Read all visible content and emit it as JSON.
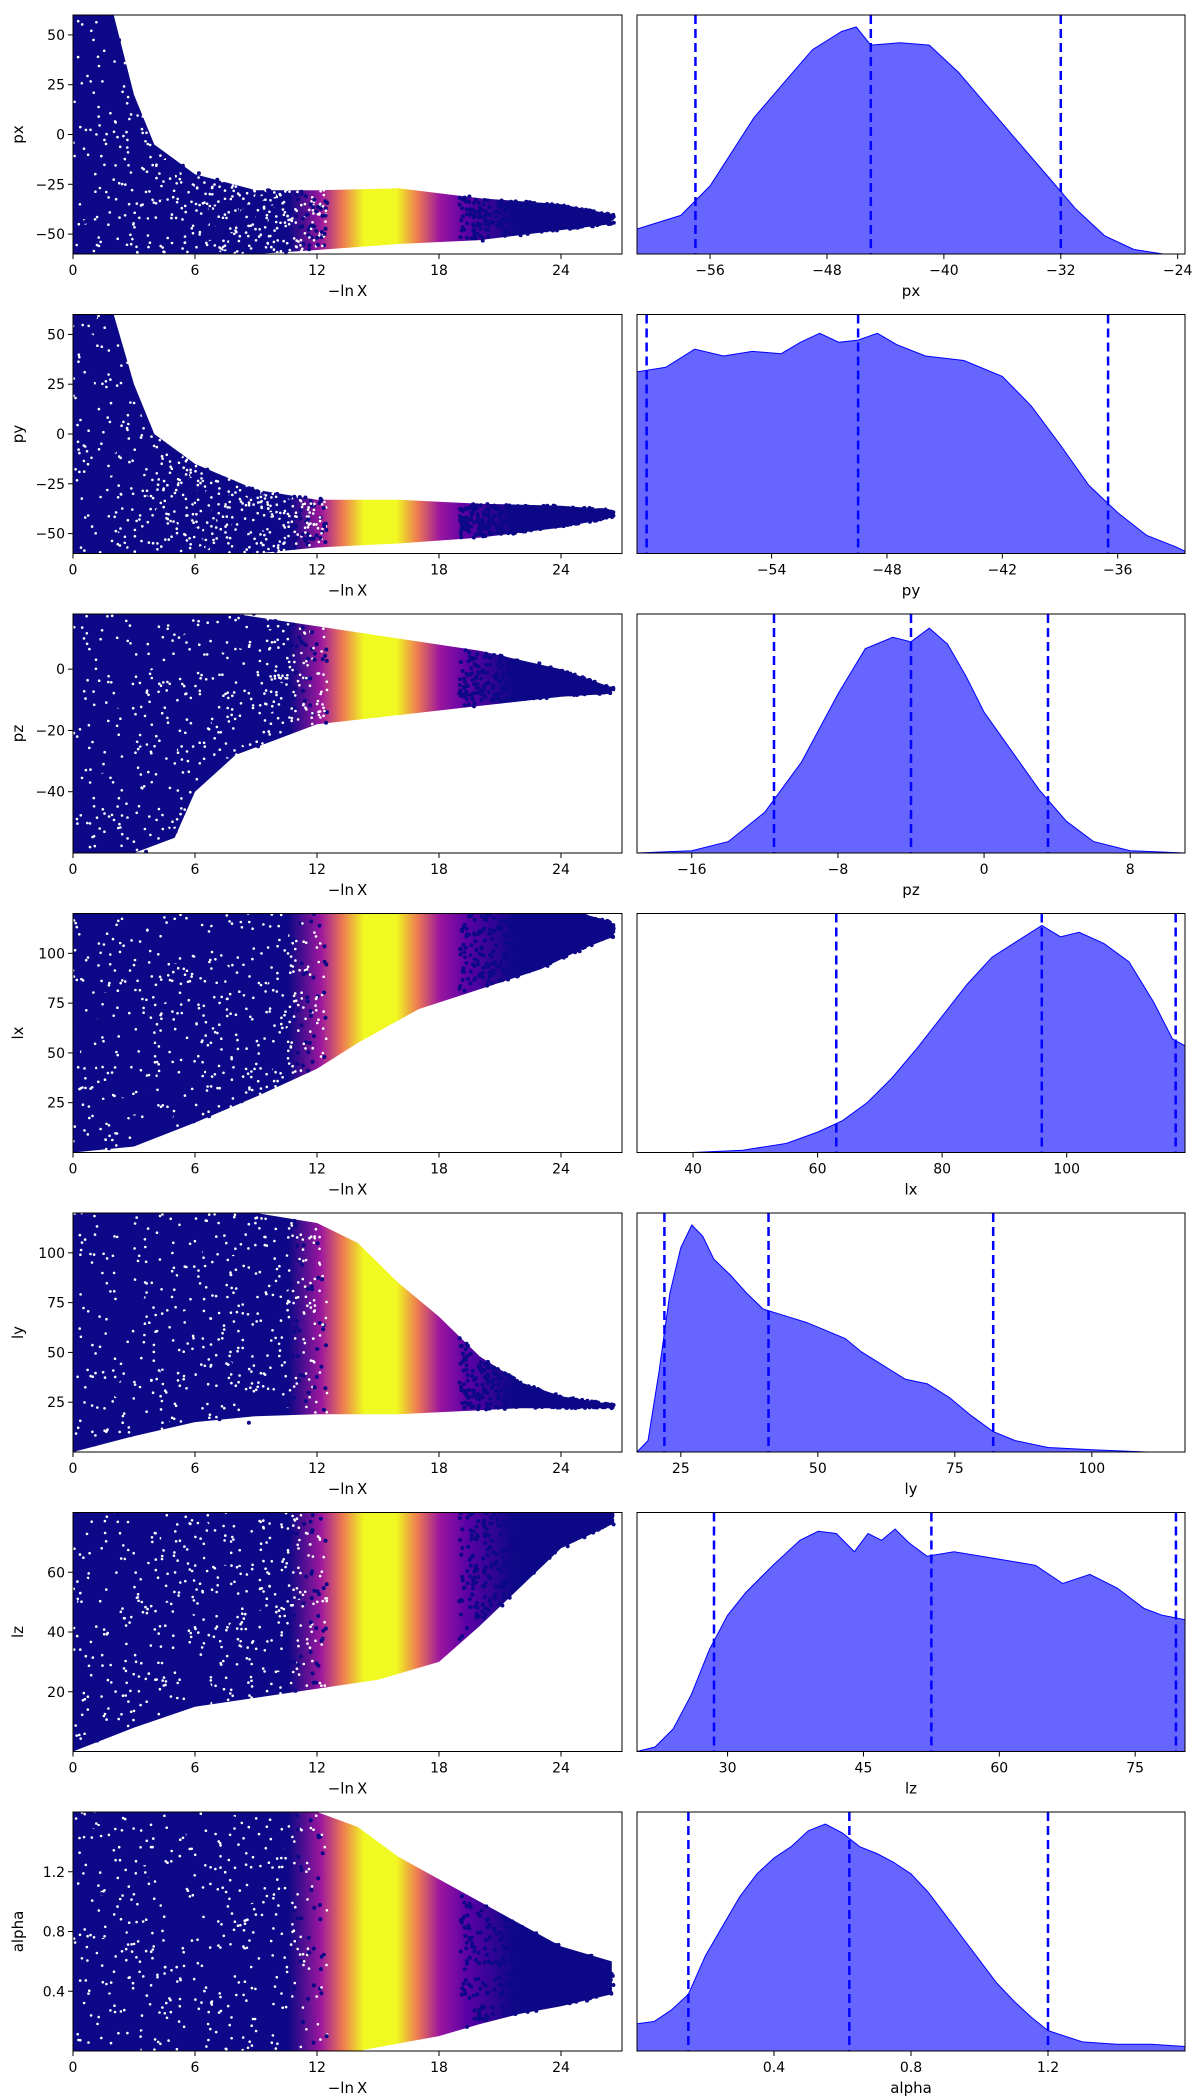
{
  "figure": {
    "x_axis_label": "−ln X"
  },
  "colors": {
    "scatter_colormap": [
      "#0d0887",
      "#5c01a6",
      "#9c179e",
      "#cc4778",
      "#ed7953",
      "#fdb42f",
      "#f0f921"
    ],
    "kde_fill": "#0000ff",
    "kde_fill_alpha": 0.6,
    "quantile_line": "#0000ff"
  },
  "chart_data": [
    {
      "panel": "trace",
      "type": "scatter",
      "param": "px",
      "xlabel": "−ln X",
      "ylabel": "px",
      "xlim": [
        0,
        27
      ],
      "ylim": [
        -60,
        60
      ],
      "xticks": [
        0,
        6,
        12,
        18,
        24
      ],
      "yticks": [
        -50,
        -25,
        0,
        25,
        50
      ],
      "color_scale": "plasma, peak near −ln X ≈ 15.5",
      "envelope": [
        [
          0,
          -60,
          60
        ],
        [
          2,
          -60,
          60
        ],
        [
          3,
          -60,
          20
        ],
        [
          4,
          -60,
          -5
        ],
        [
          6,
          -60,
          -20
        ],
        [
          9,
          -60,
          -28
        ],
        [
          12,
          -58,
          -28
        ],
        [
          16,
          -55,
          -27
        ],
        [
          20,
          -53,
          -32
        ],
        [
          24,
          -48,
          -35
        ],
        [
          26.5,
          -45,
          -40
        ]
      ]
    },
    {
      "panel": "posterior",
      "type": "area",
      "param": "px",
      "xlabel": "px",
      "xlim": [
        -61,
        -23.5
      ],
      "xticks": [
        -56,
        -48,
        -40,
        -32,
        -24
      ],
      "xtick_labels": [
        "−56",
        "−48",
        "−40",
        "−32",
        "−24"
      ],
      "quantiles": [
        -57.0,
        -45.0,
        -32.0
      ],
      "density": [
        [
          -61,
          0.11
        ],
        [
          -58,
          0.17
        ],
        [
          -56,
          0.3
        ],
        [
          -53,
          0.6
        ],
        [
          -51,
          0.75
        ],
        [
          -49,
          0.9
        ],
        [
          -47,
          0.98
        ],
        [
          -46,
          1.0
        ],
        [
          -45,
          0.92
        ],
        [
          -43,
          0.93
        ],
        [
          -41,
          0.92
        ],
        [
          -39,
          0.8
        ],
        [
          -37,
          0.65
        ],
        [
          -35,
          0.5
        ],
        [
          -33,
          0.35
        ],
        [
          -31,
          0.2
        ],
        [
          -29,
          0.08
        ],
        [
          -27,
          0.02
        ],
        [
          -25,
          0.0
        ],
        [
          -23.5,
          0.0
        ]
      ]
    },
    {
      "panel": "trace",
      "type": "scatter",
      "param": "py",
      "xlabel": "−ln X",
      "ylabel": "py",
      "xlim": [
        0,
        27
      ],
      "ylim": [
        -60,
        60
      ],
      "xticks": [
        0,
        6,
        12,
        18,
        24
      ],
      "yticks": [
        -50,
        -25,
        0,
        25,
        50
      ],
      "color_scale": "plasma, peak near −ln X ≈ 15.5",
      "envelope": [
        [
          0,
          -60,
          60
        ],
        [
          2,
          -60,
          60
        ],
        [
          3,
          -60,
          25
        ],
        [
          4,
          -60,
          0
        ],
        [
          6,
          -60,
          -15
        ],
        [
          9,
          -60,
          -28
        ],
        [
          12,
          -57,
          -33
        ],
        [
          16,
          -55,
          -33
        ],
        [
          20,
          -52,
          -35
        ],
        [
          24,
          -47,
          -36
        ],
        [
          26.5,
          -42,
          -38
        ]
      ]
    },
    {
      "panel": "posterior",
      "type": "area",
      "param": "py",
      "xlabel": "py",
      "xlim": [
        -61,
        -32.5
      ],
      "xticks": [
        -54,
        -48,
        -42,
        -36
      ],
      "xtick_labels": [
        "−54",
        "−48",
        "−42",
        "−36"
      ],
      "quantiles": [
        -60.5,
        -49.5,
        -36.5
      ],
      "density": [
        [
          -61,
          0.8
        ],
        [
          -59.5,
          0.82
        ],
        [
          -58,
          0.9
        ],
        [
          -56.5,
          0.87
        ],
        [
          -55,
          0.89
        ],
        [
          -53.5,
          0.88
        ],
        [
          -52.5,
          0.93
        ],
        [
          -51.5,
          0.97
        ],
        [
          -50.5,
          0.93
        ],
        [
          -49.5,
          0.94
        ],
        [
          -48.5,
          0.97
        ],
        [
          -47.5,
          0.92
        ],
        [
          -46,
          0.87
        ],
        [
          -44,
          0.85
        ],
        [
          -42,
          0.78
        ],
        [
          -40.5,
          0.65
        ],
        [
          -39,
          0.48
        ],
        [
          -37.5,
          0.3
        ],
        [
          -36,
          0.18
        ],
        [
          -34.5,
          0.08
        ],
        [
          -33,
          0.03
        ],
        [
          -32.5,
          0.01
        ]
      ]
    },
    {
      "panel": "trace",
      "type": "scatter",
      "param": "pz",
      "xlabel": "−ln X",
      "ylabel": "pz",
      "xlim": [
        0,
        27
      ],
      "ylim": [
        -60,
        18
      ],
      "xticks": [
        0,
        6,
        12,
        18,
        24
      ],
      "yticks": [
        -40,
        -20,
        0
      ],
      "ytick_labels": [
        "−40",
        "−20",
        "0"
      ],
      "color_scale": "plasma, peak near −ln X ≈ 15.5",
      "envelope": [
        [
          0,
          -60,
          18
        ],
        [
          3,
          -60,
          18
        ],
        [
          5,
          -55,
          18
        ],
        [
          6,
          -40,
          18
        ],
        [
          8,
          -28,
          18
        ],
        [
          12,
          -18,
          14
        ],
        [
          16,
          -15,
          10
        ],
        [
          20,
          -12,
          6
        ],
        [
          24,
          -9,
          0
        ],
        [
          26.5,
          -8,
          -6
        ]
      ]
    },
    {
      "panel": "posterior",
      "type": "area",
      "param": "pz",
      "xlabel": "pz",
      "xlim": [
        -19,
        11
      ],
      "xticks": [
        -16,
        -8,
        0,
        8
      ],
      "xtick_labels": [
        "−16",
        "−8",
        "0",
        "8"
      ],
      "quantiles": [
        -11.5,
        -4.0,
        3.5
      ],
      "density": [
        [
          -19,
          0.0
        ],
        [
          -16,
          0.01
        ],
        [
          -14,
          0.05
        ],
        [
          -12,
          0.18
        ],
        [
          -10,
          0.4
        ],
        [
          -8,
          0.7
        ],
        [
          -6.5,
          0.9
        ],
        [
          -5,
          0.95
        ],
        [
          -4,
          0.93
        ],
        [
          -3,
          0.99
        ],
        [
          -2,
          0.92
        ],
        [
          -1,
          0.78
        ],
        [
          0,
          0.62
        ],
        [
          1.5,
          0.45
        ],
        [
          3,
          0.28
        ],
        [
          4.5,
          0.14
        ],
        [
          6,
          0.05
        ],
        [
          8,
          0.01
        ],
        [
          11,
          0.0
        ]
      ]
    },
    {
      "panel": "trace",
      "type": "scatter",
      "param": "lx",
      "xlabel": "−ln X",
      "ylabel": "lx",
      "xlim": [
        0,
        27
      ],
      "ylim": [
        0,
        120
      ],
      "xticks": [
        0,
        6,
        12,
        18,
        24
      ],
      "yticks": [
        25,
        50,
        75,
        100
      ],
      "color_scale": "plasma, peak near −ln X ≈ 15.5",
      "envelope": [
        [
          0,
          0,
          120
        ],
        [
          3,
          3,
          120
        ],
        [
          6,
          15,
          120
        ],
        [
          9,
          28,
          120
        ],
        [
          12,
          42,
          120
        ],
        [
          14,
          55,
          120
        ],
        [
          17,
          72,
          120
        ],
        [
          20,
          82,
          120
        ],
        [
          23,
          92,
          120
        ],
        [
          25,
          102,
          120
        ],
        [
          26.5,
          108,
          116
        ]
      ]
    },
    {
      "panel": "posterior",
      "type": "area",
      "param": "lx",
      "xlabel": "lx",
      "xlim": [
        31,
        119
      ],
      "xticks": [
        40,
        60,
        80,
        100
      ],
      "xtick_labels": [
        "40",
        "60",
        "80",
        "100"
      ],
      "quantiles": [
        63.0,
        96.0,
        117.5
      ],
      "density": [
        [
          31,
          0.0
        ],
        [
          40,
          0.0
        ],
        [
          48,
          0.01
        ],
        [
          55,
          0.04
        ],
        [
          60,
          0.09
        ],
        [
          64,
          0.14
        ],
        [
          68,
          0.22
        ],
        [
          72,
          0.33
        ],
        [
          76,
          0.46
        ],
        [
          80,
          0.6
        ],
        [
          84,
          0.74
        ],
        [
          88,
          0.86
        ],
        [
          92,
          0.93
        ],
        [
          96,
          1.0
        ],
        [
          99,
          0.95
        ],
        [
          102,
          0.97
        ],
        [
          106,
          0.92
        ],
        [
          110,
          0.84
        ],
        [
          114,
          0.66
        ],
        [
          117,
          0.5
        ],
        [
          119,
          0.47
        ]
      ]
    },
    {
      "panel": "trace",
      "type": "scatter",
      "param": "ly",
      "xlabel": "−ln X",
      "ylabel": "ly",
      "xlim": [
        0,
        27
      ],
      "ylim": [
        0,
        120
      ],
      "xticks": [
        0,
        6,
        12,
        18,
        24
      ],
      "yticks": [
        25,
        50,
        75,
        100
      ],
      "color_scale": "plasma, peak near −ln X ≈ 15.5",
      "envelope": [
        [
          0,
          0,
          120
        ],
        [
          3,
          8,
          120
        ],
        [
          6,
          15,
          120
        ],
        [
          9,
          18,
          120
        ],
        [
          12,
          19,
          115
        ],
        [
          14,
          19,
          105
        ],
        [
          16,
          19,
          85
        ],
        [
          18,
          20,
          68
        ],
        [
          20,
          21,
          48
        ],
        [
          22,
          22,
          35
        ],
        [
          24,
          22,
          28
        ],
        [
          26.5,
          22,
          24
        ]
      ]
    },
    {
      "panel": "posterior",
      "type": "area",
      "param": "ly",
      "xlabel": "ly",
      "xlim": [
        17,
        117
      ],
      "xticks": [
        25,
        50,
        75,
        100
      ],
      "xtick_labels": [
        "25",
        "50",
        "75",
        "100"
      ],
      "quantiles": [
        22.0,
        41.0,
        82.0
      ],
      "density": [
        [
          17,
          0.0
        ],
        [
          19,
          0.05
        ],
        [
          21,
          0.35
        ],
        [
          23,
          0.7
        ],
        [
          25,
          0.9
        ],
        [
          27,
          1.0
        ],
        [
          29,
          0.95
        ],
        [
          31,
          0.85
        ],
        [
          34,
          0.78
        ],
        [
          37,
          0.7
        ],
        [
          40,
          0.63
        ],
        [
          44,
          0.6
        ],
        [
          48,
          0.57
        ],
        [
          52,
          0.53
        ],
        [
          55,
          0.5
        ],
        [
          58,
          0.44
        ],
        [
          62,
          0.38
        ],
        [
          66,
          0.32
        ],
        [
          70,
          0.3
        ],
        [
          74,
          0.24
        ],
        [
          78,
          0.16
        ],
        [
          82,
          0.09
        ],
        [
          86,
          0.05
        ],
        [
          92,
          0.02
        ],
        [
          100,
          0.01
        ],
        [
          110,
          0.0
        ],
        [
          117,
          0.0
        ]
      ]
    },
    {
      "panel": "trace",
      "type": "scatter",
      "param": "lz",
      "xlabel": "−ln X",
      "ylabel": "lz",
      "xlim": [
        0,
        27
      ],
      "ylim": [
        0,
        80
      ],
      "xticks": [
        0,
        6,
        12,
        18,
        24
      ],
      "yticks": [
        20,
        40,
        60
      ],
      "color_scale": "plasma, peak near −ln X ≈ 15.5",
      "envelope": [
        [
          0,
          0,
          80
        ],
        [
          3,
          8,
          80
        ],
        [
          6,
          15,
          80
        ],
        [
          9,
          18,
          80
        ],
        [
          12,
          21,
          80
        ],
        [
          15,
          24,
          80
        ],
        [
          18,
          30,
          80
        ],
        [
          20,
          42,
          80
        ],
        [
          22,
          55,
          80
        ],
        [
          24,
          68,
          80
        ],
        [
          26.5,
          76,
          80
        ]
      ]
    },
    {
      "panel": "posterior",
      "type": "area",
      "param": "lz",
      "xlabel": "lz",
      "xlim": [
        20,
        80.5
      ],
      "xticks": [
        30,
        45,
        60,
        75
      ],
      "xtick_labels": [
        "30",
        "45",
        "60",
        "75"
      ],
      "quantiles": [
        28.5,
        52.5,
        79.5
      ],
      "density": [
        [
          20,
          0.0
        ],
        [
          22,
          0.02
        ],
        [
          24,
          0.1
        ],
        [
          26,
          0.25
        ],
        [
          28,
          0.45
        ],
        [
          30,
          0.6
        ],
        [
          32,
          0.7
        ],
        [
          35,
          0.82
        ],
        [
          38,
          0.93
        ],
        [
          40,
          0.97
        ],
        [
          42,
          0.96
        ],
        [
          44,
          0.88
        ],
        [
          45.5,
          0.96
        ],
        [
          47,
          0.93
        ],
        [
          48.5,
          0.98
        ],
        [
          50,
          0.92
        ],
        [
          52,
          0.86
        ],
        [
          55,
          0.88
        ],
        [
          58,
          0.86
        ],
        [
          61,
          0.84
        ],
        [
          64,
          0.82
        ],
        [
          67,
          0.74
        ],
        [
          70,
          0.78
        ],
        [
          73,
          0.72
        ],
        [
          76,
          0.63
        ],
        [
          78,
          0.6
        ],
        [
          80.5,
          0.58
        ]
      ]
    },
    {
      "panel": "trace",
      "type": "scatter",
      "param": "alpha",
      "xlabel": "−ln X",
      "ylabel": "alpha",
      "xlim": [
        0,
        27
      ],
      "ylim": [
        0,
        1.6
      ],
      "xticks": [
        0,
        6,
        12,
        18,
        24
      ],
      "yticks": [
        0.4,
        0.8,
        1.2
      ],
      "color_scale": "plasma, peak near −ln X ≈ 15.5",
      "envelope": [
        [
          0,
          0,
          1.6
        ],
        [
          12,
          0,
          1.6
        ],
        [
          14,
          0,
          1.5
        ],
        [
          16,
          0.05,
          1.3
        ],
        [
          18,
          0.1,
          1.15
        ],
        [
          20,
          0.18,
          1.0
        ],
        [
          22,
          0.25,
          0.85
        ],
        [
          24,
          0.3,
          0.7
        ],
        [
          26.5,
          0.38,
          0.6
        ]
      ]
    },
    {
      "panel": "posterior",
      "type": "area",
      "param": "alpha",
      "xlabel": "alpha",
      "xlim": [
        0.0,
        1.6
      ],
      "xticks": [
        0.4,
        0.8,
        1.2
      ],
      "xtick_labels": [
        "0.4",
        "0.8",
        "1.2"
      ],
      "quantiles": [
        0.15,
        0.62,
        1.2
      ],
      "density": [
        [
          0.0,
          0.12
        ],
        [
          0.05,
          0.13
        ],
        [
          0.1,
          0.18
        ],
        [
          0.15,
          0.25
        ],
        [
          0.2,
          0.42
        ],
        [
          0.25,
          0.55
        ],
        [
          0.3,
          0.68
        ],
        [
          0.35,
          0.78
        ],
        [
          0.4,
          0.85
        ],
        [
          0.45,
          0.9
        ],
        [
          0.5,
          0.97
        ],
        [
          0.55,
          1.0
        ],
        [
          0.6,
          0.96
        ],
        [
          0.65,
          0.9
        ],
        [
          0.7,
          0.87
        ],
        [
          0.75,
          0.83
        ],
        [
          0.8,
          0.78
        ],
        [
          0.85,
          0.7
        ],
        [
          0.9,
          0.6
        ],
        [
          0.95,
          0.5
        ],
        [
          1.0,
          0.4
        ],
        [
          1.05,
          0.3
        ],
        [
          1.1,
          0.22
        ],
        [
          1.15,
          0.15
        ],
        [
          1.2,
          0.09
        ],
        [
          1.3,
          0.04
        ],
        [
          1.4,
          0.03
        ],
        [
          1.5,
          0.03
        ],
        [
          1.6,
          0.02
        ]
      ]
    }
  ]
}
